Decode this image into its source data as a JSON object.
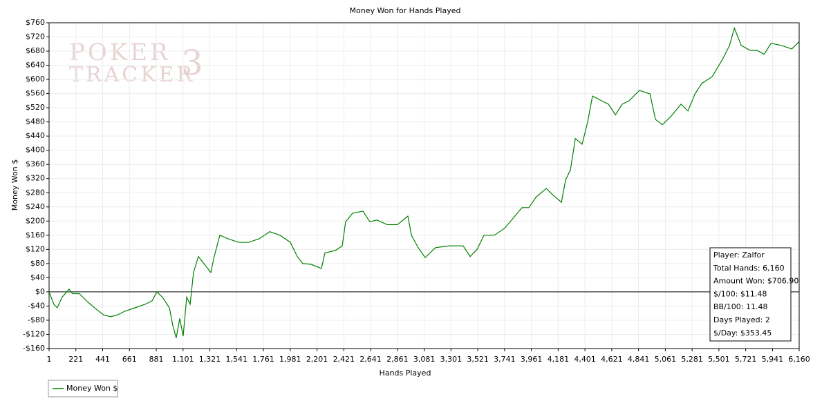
{
  "chart_data": {
    "type": "line",
    "title": "Money Won for Hands Played",
    "xlabel": "Hands Played",
    "ylabel": "Money Won $",
    "x": [
      1,
      40,
      68,
      108,
      165,
      193,
      250,
      307,
      392,
      449,
      506,
      563,
      620,
      705,
      790,
      847,
      886,
      932,
      989,
      1017,
      1045,
      1074,
      1102,
      1131,
      1159,
      1187,
      1227,
      1272,
      1329,
      1357,
      1403,
      1471,
      1556,
      1641,
      1726,
      1812,
      1897,
      1982,
      2039,
      2084,
      2152,
      2237,
      2266,
      2351,
      2408,
      2436,
      2493,
      2578,
      2635,
      2692,
      2777,
      2862,
      2947,
      2976,
      3032,
      3089,
      3174,
      3288,
      3401,
      3458,
      3515,
      3572,
      3657,
      3742,
      3799,
      3884,
      3941,
      3998,
      4083,
      4140,
      4208,
      4242,
      4282,
      4322,
      4378,
      4424,
      4463,
      4537,
      4594,
      4651,
      4707,
      4764,
      4849,
      4935,
      4980,
      5037,
      5105,
      5190,
      5247,
      5304,
      5361,
      5446,
      5531,
      5588,
      5628,
      5684,
      5758,
      5815,
      5872,
      5929,
      6014,
      6099,
      6160
    ],
    "series": [
      {
        "name": "Money Won $",
        "color": "#008000",
        "values": [
          0,
          -35,
          -45,
          -15,
          8,
          -5,
          -5,
          -25,
          -50,
          -65,
          -70,
          -65,
          -55,
          -45,
          -35,
          -25,
          0,
          -15,
          -45,
          -95,
          -130,
          -75,
          -125,
          -15,
          -35,
          55,
          100,
          80,
          55,
          100,
          160,
          150,
          140,
          140,
          150,
          170,
          160,
          140,
          100,
          80,
          78,
          66,
          110,
          117,
          130,
          198,
          222,
          228,
          198,
          203,
          190,
          190,
          214,
          160,
          125,
          97,
          125,
          130,
          130,
          100,
          120,
          160,
          160,
          180,
          203,
          238,
          238,
          267,
          292,
          273,
          253,
          316,
          345,
          433,
          417,
          481,
          553,
          540,
          530,
          500,
          530,
          540,
          569,
          559,
          487,
          472,
          495,
          530,
          511,
          559,
          589,
          608,
          657,
          696,
          745,
          696,
          682,
          682,
          671,
          702,
          696,
          686,
          707
        ]
      }
    ],
    "xlim": [
      1,
      6160
    ],
    "ylim": [
      -160,
      760
    ],
    "xticks": [
      1,
      221,
      441,
      661,
      881,
      {
        "value": 1101,
        "label": "1,101"
      },
      {
        "value": 1321,
        "label": "1,321"
      },
      {
        "value": 1541,
        "label": "1,541"
      },
      {
        "value": 1761,
        "label": "1,761"
      },
      {
        "value": 1981,
        "label": "1,981"
      },
      {
        "value": 2201,
        "label": "2,201"
      },
      {
        "value": 2421,
        "label": "2,421"
      },
      {
        "value": 2641,
        "label": "2,641"
      },
      {
        "value": 2861,
        "label": "2,861"
      },
      {
        "value": 3081,
        "label": "3,081"
      },
      {
        "value": 3301,
        "label": "3,301"
      },
      {
        "value": 3521,
        "label": "3,521"
      },
      {
        "value": 3741,
        "label": "3,741"
      },
      {
        "value": 3961,
        "label": "3,961"
      },
      {
        "value": 4181,
        "label": "4,181"
      },
      {
        "value": 4401,
        "label": "4,401"
      },
      {
        "value": 4621,
        "label": "4,621"
      },
      {
        "value": 4841,
        "label": "4,841"
      },
      {
        "value": 5061,
        "label": "5,061"
      },
      {
        "value": 5281,
        "label": "5,281"
      },
      {
        "value": 5501,
        "label": "5,501"
      },
      {
        "value": 5721,
        "label": "5,721"
      },
      {
        "value": 5941,
        "label": "5,941"
      },
      {
        "value": 6160,
        "label": "6,160"
      }
    ],
    "yticks": [
      {
        "value": -160,
        "label": "-$160"
      },
      {
        "value": -120,
        "label": "-$120"
      },
      {
        "value": -80,
        "label": "-$80"
      },
      {
        "value": -40,
        "label": "-$40"
      },
      {
        "value": 0,
        "label": "$0"
      },
      {
        "value": 40,
        "label": "$40"
      },
      {
        "value": 80,
        "label": "$80"
      },
      {
        "value": 120,
        "label": "$120"
      },
      {
        "value": 160,
        "label": "$160"
      },
      {
        "value": 200,
        "label": "$200"
      },
      {
        "value": 240,
        "label": "$240"
      },
      {
        "value": 280,
        "label": "$280"
      },
      {
        "value": 320,
        "label": "$320"
      },
      {
        "value": 360,
        "label": "$360"
      },
      {
        "value": 400,
        "label": "$400"
      },
      {
        "value": 440,
        "label": "$440"
      },
      {
        "value": 480,
        "label": "$480"
      },
      {
        "value": 520,
        "label": "$520"
      },
      {
        "value": 560,
        "label": "$560"
      },
      {
        "value": 600,
        "label": "$600"
      },
      {
        "value": 640,
        "label": "$640"
      },
      {
        "value": 680,
        "label": "$680"
      },
      {
        "value": 720,
        "label": "$720"
      },
      {
        "value": 760,
        "label": "$760"
      }
    ],
    "grid": true,
    "legend": "bottom-left",
    "info_box": [
      "Player: Zalfor",
      "Total Hands: 6,160",
      "Amount Won: $706.90",
      "$/100: $11.48",
      "BB/100: 11.48",
      "Days Played: 2",
      "$/Day: $353.45"
    ],
    "watermark": [
      "POKER",
      "TRACKER",
      "3"
    ]
  }
}
